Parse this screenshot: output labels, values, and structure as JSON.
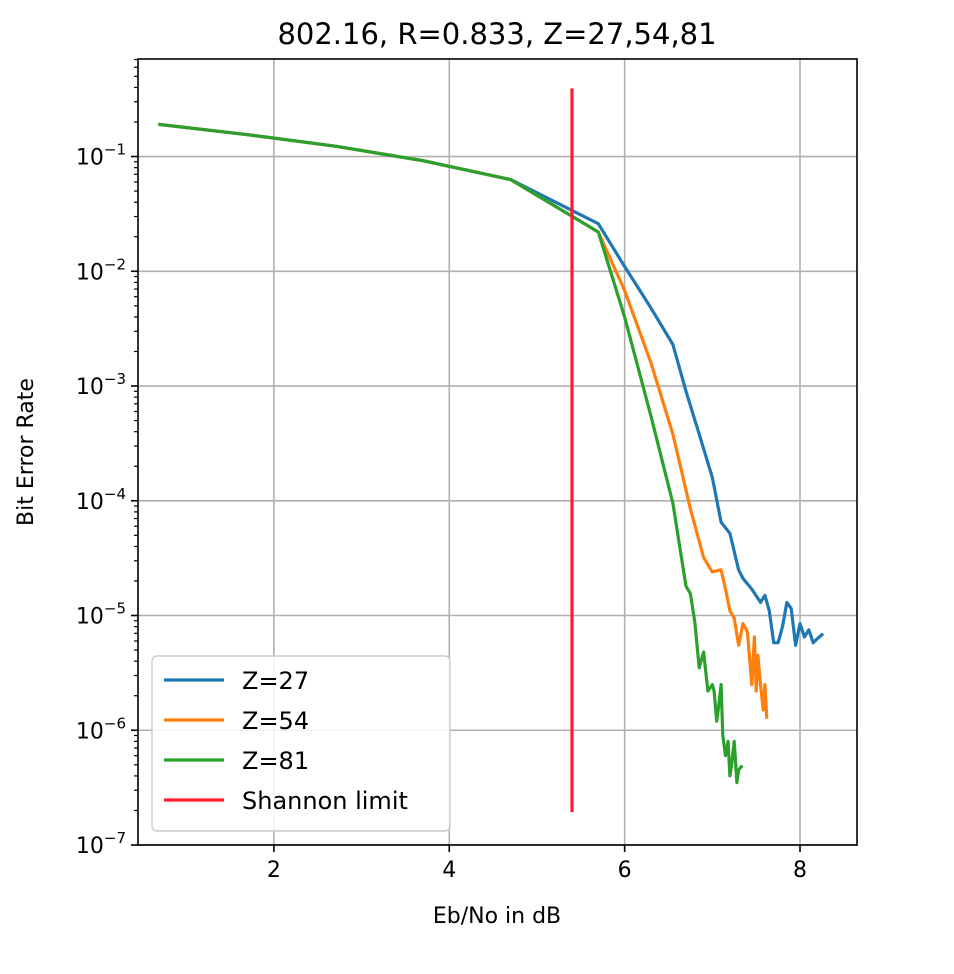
{
  "chart_data": {
    "type": "line",
    "title": "802.16, R=0.833, Z=27,54,81",
    "xlabel": "Eb/No in dB",
    "ylabel": "Bit Error Rate",
    "xlim": [
      0.45,
      8.65
    ],
    "ylim_exponent": [
      -7,
      -0.15
    ],
    "yscale": "log",
    "grid": true,
    "legend_position": "lower-left",
    "x_ticks": [
      {
        "value": 2,
        "label": "2"
      },
      {
        "value": 4,
        "label": "4"
      },
      {
        "value": 6,
        "label": "6"
      },
      {
        "value": 8,
        "label": "8"
      }
    ],
    "y_ticks": [
      {
        "exponent": -1,
        "base": "10",
        "sup": "−1"
      },
      {
        "exponent": -2,
        "base": "10",
        "sup": "−2"
      },
      {
        "exponent": -3,
        "base": "10",
        "sup": "−3"
      },
      {
        "exponent": -4,
        "base": "10",
        "sup": "−4"
      },
      {
        "exponent": -5,
        "base": "10",
        "sup": "−5"
      },
      {
        "exponent": -6,
        "base": "10",
        "sup": "−6"
      },
      {
        "exponent": -7,
        "base": "10",
        "sup": "−7"
      }
    ],
    "series": [
      {
        "name": "Z=27",
        "color": "#1f77b4",
        "x": [
          0.7,
          1.7,
          2.7,
          3.7,
          4.7,
          5.7,
          6.0,
          6.3,
          6.55,
          6.7,
          6.85,
          7.0,
          7.1,
          7.2,
          7.3,
          7.35,
          7.45,
          7.55,
          7.6,
          7.65,
          7.7,
          7.75,
          7.8,
          7.85,
          7.9,
          7.95,
          8.0,
          8.05,
          8.1,
          8.15,
          8.2,
          8.25
        ],
        "y": [
          0.19,
          0.155,
          0.123,
          0.092,
          0.063,
          0.026,
          0.011,
          0.0048,
          0.0023,
          0.0009,
          0.00038,
          0.00016,
          6.5e-05,
          5.2e-05,
          2.5e-05,
          2.1e-05,
          1.7e-05,
          1.3e-05,
          1.5e-05,
          1.1e-05,
          5.8e-06,
          5.8e-06,
          8e-06,
          1.3e-05,
          1.15e-05,
          5.5e-06,
          8.5e-06,
          6.5e-06,
          7.5e-06,
          5.8e-06,
          6.3e-06,
          6.8e-06
        ]
      },
      {
        "name": "Z=54",
        "color": "#ff7f0e",
        "x": [
          0.7,
          1.7,
          2.7,
          3.7,
          4.7,
          5.7,
          6.0,
          6.3,
          6.55,
          6.75,
          6.9,
          7.0,
          7.1,
          7.15,
          7.2,
          7.25,
          7.3,
          7.35,
          7.4,
          7.45,
          7.48,
          7.5,
          7.52,
          7.55,
          7.58,
          7.6,
          7.62
        ],
        "y": [
          0.19,
          0.155,
          0.123,
          0.092,
          0.063,
          0.022,
          0.0068,
          0.0016,
          0.00038,
          8.5e-05,
          3.2e-05,
          2.4e-05,
          2.5e-05,
          1.7e-05,
          1.1e-05,
          9.5e-06,
          5.5e-06,
          8.5e-06,
          7.2e-06,
          2.5e-06,
          6.5e-06,
          2.2e-06,
          4.5e-06,
          2.5e-06,
          1.5e-06,
          2.5e-06,
          1.3e-06
        ]
      },
      {
        "name": "Z=81",
        "color": "#2ca02c",
        "x": [
          0.7,
          1.7,
          2.7,
          3.7,
          4.7,
          5.7,
          6.0,
          6.3,
          6.55,
          6.7,
          6.75,
          6.8,
          6.85,
          6.9,
          6.95,
          7.0,
          7.02,
          7.05,
          7.08,
          7.1,
          7.12,
          7.15,
          7.18,
          7.2,
          7.22,
          7.25,
          7.28,
          7.3,
          7.33
        ],
        "y": [
          0.19,
          0.155,
          0.123,
          0.092,
          0.063,
          0.022,
          0.004,
          0.00055,
          9.5e-05,
          1.8e-05,
          1.55e-05,
          8.8e-06,
          3.5e-06,
          4.8e-06,
          2.2e-06,
          2.5e-06,
          2.2e-06,
          1.2e-06,
          1.8e-06,
          2.5e-06,
          9e-07,
          6e-07,
          8e-07,
          4e-07,
          5e-07,
          8e-07,
          3.5e-07,
          4.5e-07,
          4.8e-07
        ]
      },
      {
        "name": "Shannon limit",
        "color": "#ff1a2e",
        "x": [
          5.4,
          5.4
        ],
        "y": [
          0.38,
          2e-07
        ]
      }
    ]
  }
}
